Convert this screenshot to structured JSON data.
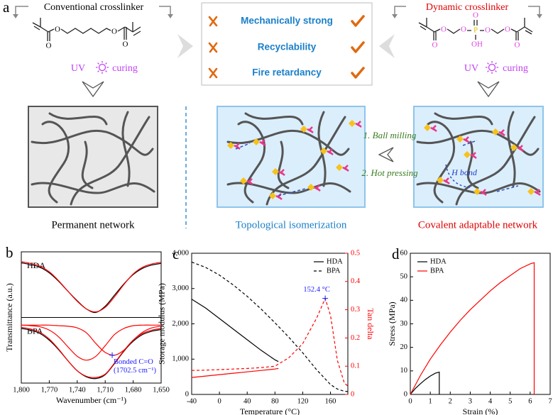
{
  "panel_a": {
    "label": "a",
    "left_title": "Conventional crosslinker",
    "right_title": "Dynamic crosslinker",
    "properties": [
      "Mechanically strong",
      "Recyclability",
      "Fire retardancy"
    ],
    "left_curing": {
      "uv": "UV",
      "curing": "curing"
    },
    "right_curing": {
      "uv": "UV",
      "curing": "curing"
    },
    "left_atoms": [
      "O",
      "O",
      "O",
      "O"
    ],
    "right_atoms": [
      "O",
      "O",
      "O",
      "P",
      "O",
      "OH",
      "O",
      "O",
      "O"
    ],
    "networks": {
      "permanent": "Permanent network",
      "topological": "Topological isomerization",
      "covalent": "Covalent adaptable network"
    },
    "steps": [
      "1. Ball milling",
      "2. Hot pressing"
    ],
    "h_bond": "H bond"
  },
  "chart_data": [
    {
      "type": "line",
      "panel": "b",
      "ylabel": "Transmittance (a.u.)",
      "xlabel": "Wavenumber (cm⁻¹)",
      "x": [
        1800,
        1790,
        1780,
        1770,
        1760,
        1750,
        1740,
        1730,
        1720,
        1710,
        1700,
        1690,
        1680,
        1670,
        1660,
        1650
      ],
      "xlim": [
        1800,
        1650
      ],
      "xticks": [
        {
          "value": 1800,
          "label": "1,800"
        },
        {
          "value": 1770,
          "label": "1,770"
        },
        {
          "value": 1740,
          "label": "1,740"
        },
        {
          "value": 1710,
          "label": "1,710"
        },
        {
          "value": 1680,
          "label": "1,680"
        },
        {
          "value": 1650,
          "label": "1,650"
        }
      ],
      "ylim": [
        0,
        1
      ],
      "subplots": [
        {
          "label": "HDA",
          "series": [
            {
              "color": "#000000",
              "values": [
                0.93,
                0.9,
                0.85,
                0.75,
                0.6,
                0.42,
                0.25,
                0.1,
                0.04,
                0.15,
                0.35,
                0.55,
                0.72,
                0.83,
                0.89,
                0.92
              ]
            },
            {
              "color": "#ff0000",
              "values": [
                0.95,
                0.92,
                0.87,
                0.77,
                0.61,
                0.42,
                0.24,
                0.1,
                0.05,
                0.13,
                0.32,
                0.54,
                0.73,
                0.85,
                0.91,
                0.94
              ]
            }
          ]
        },
        {
          "label": "BPA",
          "series": [
            {
              "color": "#000000",
              "values": [
                0.93,
                0.9,
                0.84,
                0.72,
                0.55,
                0.35,
                0.17,
                0.06,
                0.03,
                0.1,
                0.3,
                0.52,
                0.7,
                0.82,
                0.88,
                0.91
              ]
            },
            {
              "color": "#ff0000",
              "values": [
                0.95,
                0.92,
                0.86,
                0.74,
                0.56,
                0.35,
                0.17,
                0.07,
                0.05,
                0.11,
                0.31,
                0.53,
                0.72,
                0.84,
                0.9,
                0.93
              ]
            },
            {
              "color": "#ff0000",
              "values": [
                0.99,
                0.98,
                0.96,
                0.9,
                0.78,
                0.6,
                0.43,
                0.36,
                0.43,
                0.62,
                0.82,
                0.93,
                0.98,
                0.99,
                0.99,
                0.99
              ]
            },
            {
              "color": "#ff0000",
              "values": [
                0.99,
                0.99,
                0.99,
                0.99,
                0.98,
                0.97,
                0.94,
                0.85,
                0.66,
                0.5,
                0.45,
                0.54,
                0.72,
                0.86,
                0.94,
                0.97
              ]
            }
          ],
          "annotation": {
            "text": [
              "Bonded C=O",
              "(1702.5 cm⁻¹)"
            ],
            "x": 1702.5,
            "y": 0.45,
            "color": "#1a1aff"
          }
        }
      ]
    },
    {
      "type": "line",
      "panel": "c",
      "xlabel": "Temperature (°C)",
      "ylabel": "Storage modulus (MPa)",
      "y2label": "Tan delta",
      "xlim": [
        -40,
        185
      ],
      "xticks": [
        -40,
        0,
        40,
        80,
        120,
        160
      ],
      "ylim": [
        0,
        4000
      ],
      "yticks": [
        0,
        {
          "value": 1000,
          "label": "1,000"
        },
        {
          "value": 2000,
          "label": "2,000"
        },
        {
          "value": 3000,
          "label": "3,000"
        },
        {
          "value": 4000,
          "label": "4,000"
        }
      ],
      "y2lim": [
        0,
        0.5
      ],
      "y2ticks": [
        0,
        0.1,
        0.2,
        0.3,
        0.4,
        0.5
      ],
      "y2color": "#ff0000",
      "legend": "upper right",
      "series": [
        {
          "name": "HDA",
          "color": "#000000",
          "dash": false,
          "x": [
            -40,
            -20,
            0,
            20,
            40,
            60,
            80,
            85
          ],
          "values": [
            2700,
            2450,
            2150,
            1850,
            1550,
            1250,
            980,
            930
          ]
        },
        {
          "name": "BPA",
          "color": "#000000",
          "dash": true,
          "x": [
            -40,
            -20,
            0,
            20,
            40,
            60,
            80,
            100,
            120,
            140,
            160,
            170,
            180,
            185
          ],
          "values": [
            3750,
            3600,
            3380,
            3100,
            2780,
            2420,
            2030,
            1620,
            1180,
            700,
            280,
            150,
            90,
            80
          ]
        },
        {
          "name": "HDA",
          "color": "#ff0000",
          "dash": false,
          "axis": "y2",
          "x": [
            -40,
            -20,
            0,
            20,
            40,
            60,
            80,
            85
          ],
          "values": [
            0.06,
            0.065,
            0.07,
            0.075,
            0.08,
            0.085,
            0.09,
            0.092
          ]
        },
        {
          "name": "BPA",
          "color": "#ff0000",
          "dash": true,
          "axis": "y2",
          "x": [
            -40,
            -20,
            0,
            20,
            40,
            60,
            80,
            100,
            120,
            140,
            152.4,
            160,
            170,
            180,
            185
          ],
          "values": [
            0.085,
            0.086,
            0.088,
            0.09,
            0.092,
            0.095,
            0.1,
            0.13,
            0.18,
            0.27,
            0.34,
            0.28,
            0.12,
            0.04,
            0.03
          ]
        }
      ],
      "annotation": {
        "text": "152.4 °C",
        "x": 152.4,
        "y": 0.34,
        "axis": "y2",
        "color": "#1a1aff"
      }
    },
    {
      "type": "line",
      "panel": "d",
      "xlabel": "Strain (%)",
      "ylabel": "Stress (MPa)",
      "xlim": [
        0,
        7
      ],
      "xticks": [
        0,
        1,
        2,
        3,
        4,
        5,
        6,
        7
      ],
      "ylim": [
        0,
        60
      ],
      "yticks": [
        0,
        10,
        20,
        30,
        40,
        50,
        60
      ],
      "legend": "upper left",
      "series": [
        {
          "name": "HDA",
          "color": "#000000",
          "dash": false,
          "x": [
            0,
            0.25,
            0.5,
            0.75,
            1,
            1.25,
            1.45,
            1.45
          ],
          "values": [
            0,
            2.5,
            4.5,
            6.3,
            7.8,
            9,
            9.5,
            0
          ]
        },
        {
          "name": "BPA",
          "color": "#ff0000",
          "dash": false,
          "x": [
            0,
            0.5,
            1,
            1.5,
            2,
            2.5,
            3,
            3.5,
            4,
            4.5,
            5,
            5.5,
            6,
            6.2,
            6.2
          ],
          "values": [
            0,
            8,
            15,
            21,
            26.5,
            31.5,
            36,
            40,
            44,
            47.5,
            50.5,
            53.5,
            55.5,
            56,
            0
          ]
        }
      ]
    }
  ]
}
